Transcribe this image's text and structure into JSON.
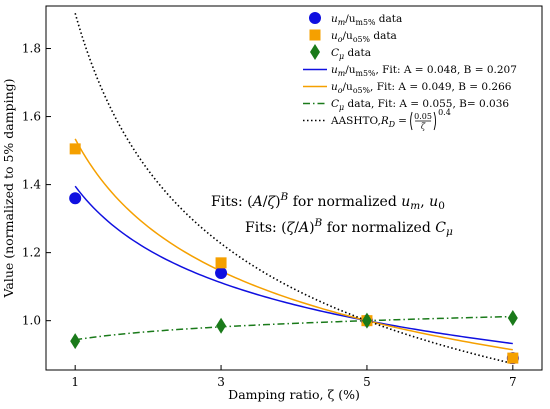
{
  "chart_data": {
    "type": "scatter",
    "xlabel": "Damping ratio, ζ (%)",
    "ylabel": "Value (normalized to 5% damping)",
    "xlim": [
      0.6,
      7.4
    ],
    "ylim": [
      0.855,
      1.925
    ],
    "xticks": [
      1,
      3,
      5,
      7
    ],
    "yticks": [
      1.0,
      1.2,
      1.4,
      1.6,
      1.8
    ],
    "ytick_labels": [
      "1.0",
      "1.2",
      "1.4",
      "1.6",
      "1.8"
    ],
    "grid": false,
    "legend_position": "top-right",
    "data_series": [
      {
        "legend": [
          "u",
          "m",
          "/u",
          "m5%",
          " data"
        ],
        "color": "#1010e0",
        "marker": "circle",
        "x": [
          1,
          3,
          5,
          7
        ],
        "y": [
          1.36,
          1.14,
          1.0,
          0.89
        ]
      },
      {
        "legend": [
          "u",
          "o",
          "/u",
          "o5%",
          " data"
        ],
        "color": "#f5a000",
        "marker": "square",
        "x": [
          1,
          3,
          5,
          7
        ],
        "y": [
          1.505,
          1.17,
          1.0,
          0.89
        ]
      },
      {
        "legend": [
          "C",
          "μ",
          " data"
        ],
        "color": "#1a7a1a",
        "marker": "diamond",
        "x": [
          1,
          3,
          5,
          7
        ],
        "y": [
          0.94,
          0.985,
          1.0,
          1.008
        ]
      }
    ],
    "fit_series": [
      {
        "legend": [
          "u",
          "m",
          "/u",
          "m5%",
          ", Fit: A = 0.048, B = 0.207"
        ],
        "color": "#1010e0",
        "dash": "none",
        "form": "power_decay",
        "A": 0.048,
        "B": 0.207
      },
      {
        "legend": [
          "u",
          "o",
          "/u",
          "o5%",
          ", Fit: A = 0.049, B = 0.266"
        ],
        "color": "#f5a000",
        "dash": "none",
        "form": "power_decay",
        "A": 0.049,
        "B": 0.266
      },
      {
        "legend": [
          "C",
          "μ",
          " data, Fit: A = 0.055, B= 0.036"
        ],
        "color": "#1a7a1a",
        "dash": "dashdot",
        "form": "power_growth",
        "A": 0.055,
        "B": 0.036
      },
      {
        "legend": "AASHTO, ",
        "formula": {
          "lhs": "R",
          "sub": "D",
          "num": "0.05",
          "den": "ζ",
          "exp": "0.4"
        },
        "color": "#000000",
        "dash": "dotted",
        "form": "aashto",
        "A": 0.05,
        "B": 0.4
      }
    ],
    "annotations": [
      {
        "parts": [
          [
            "Fits: (",
            ""
          ],
          [
            "A",
            "i"
          ],
          [
            "/",
            ""
          ],
          [
            "ζ",
            "i"
          ],
          [
            ")",
            ""
          ],
          [
            "B",
            "sup-i"
          ],
          [
            " for normalized ",
            ""
          ],
          [
            "u",
            "i"
          ],
          [
            "m",
            "sub-i"
          ],
          [
            ", ",
            ""
          ],
          [
            "u",
            "i"
          ],
          [
            "0",
            "sub"
          ]
        ]
      },
      {
        "parts": [
          [
            "Fits: (",
            ""
          ],
          [
            "ζ",
            "i"
          ],
          [
            "/",
            ""
          ],
          [
            "A",
            "i"
          ],
          [
            ")",
            ""
          ],
          [
            "B",
            "sup-i"
          ],
          [
            " for normalized ",
            ""
          ],
          [
            "C",
            "i"
          ],
          [
            "μ",
            "sub-i"
          ]
        ]
      }
    ]
  }
}
